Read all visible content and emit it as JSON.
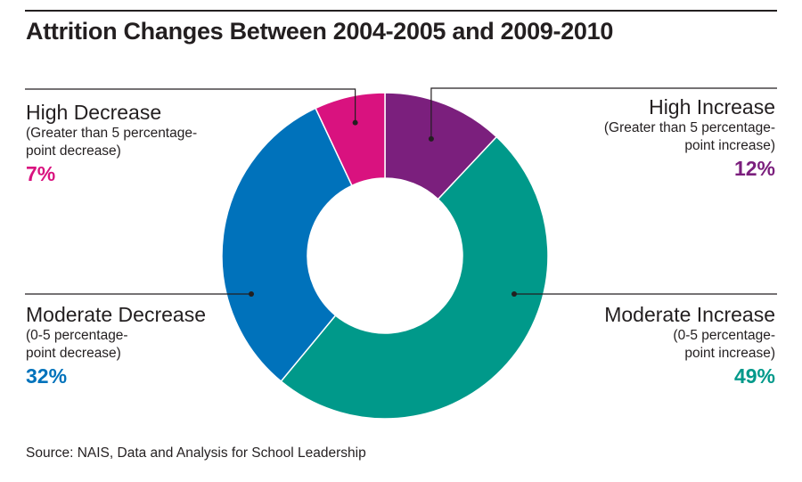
{
  "chart_data": {
    "type": "pie",
    "title": "Attrition Changes Between 2004-2005 and 2009-2010",
    "donut": true,
    "slices": [
      {
        "key": "high_increase",
        "name": "High Increase",
        "description": "(Greater than 5 percentage-point increase)",
        "desc_lines": [
          "(Greater than 5 percentage-",
          "point increase)"
        ],
        "value": 12,
        "label": "12%",
        "color": "#7b1f7d"
      },
      {
        "key": "moderate_increase",
        "name": "Moderate Increase",
        "description": "(0-5 percentage-point increase)",
        "desc_lines": [
          "(0-5 percentage-",
          "point increase)"
        ],
        "value": 49,
        "label": "49%",
        "color": "#00998a"
      },
      {
        "key": "moderate_decrease",
        "name": "Moderate Decrease",
        "description": "(0-5 percentage-point decrease)",
        "desc_lines": [
          "(0-5 percentage-",
          "point decrease)"
        ],
        "value": 32,
        "label": "32%",
        "color": "#0072bb"
      },
      {
        "key": "high_decrease",
        "name": "High Decrease",
        "description": "(Greater than 5 percentage-point decrease)",
        "desc_lines": [
          "(Greater than 5 percentage-",
          "point decrease)"
        ],
        "value": 7,
        "label": "7%",
        "color": "#d9127f"
      }
    ],
    "source": "Source: NAIS, Data and Analysis for School Leadership"
  }
}
